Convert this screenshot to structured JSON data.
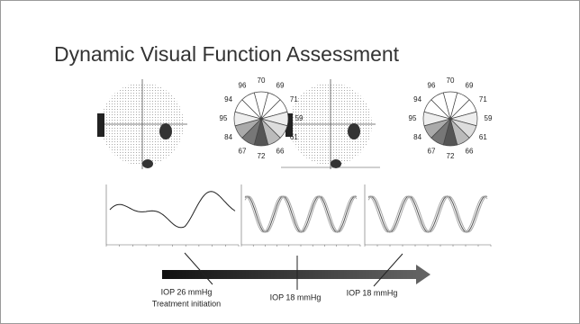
{
  "title": "Dynamic Visual Function Assessment",
  "wheels": [
    {
      "values": [
        70,
        69,
        71,
        59,
        61,
        66,
        72,
        67,
        84,
        95,
        94,
        96
      ]
    },
    {
      "values": [
        70,
        69,
        71,
        59,
        61,
        66,
        72,
        67,
        84,
        95,
        94,
        96
      ]
    }
  ],
  "timeline": {
    "labels": [
      "IOP 26 mmHg",
      "Treatment initiation",
      "IOP 18 mmHg",
      "IOP 18 mmHg"
    ]
  }
}
